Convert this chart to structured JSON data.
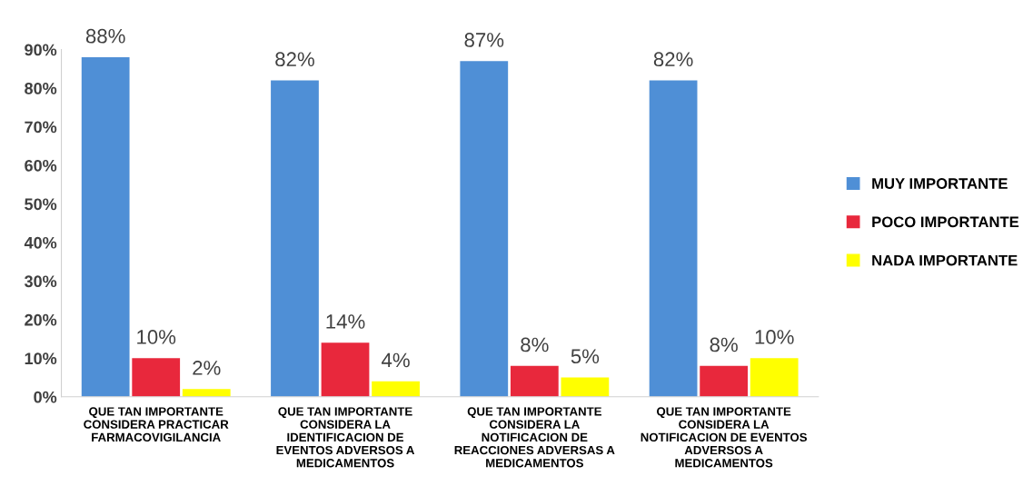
{
  "chart_data": {
    "type": "bar",
    "categories": [
      "QUE TAN IMPORTANTE\nCONSIDERA PRACTICAR\nFARMACOVIGILANCIA",
      "QUE TAN IMPORTANTE\nCONSIDERA LA\nIDENTIFICACION DE\nEVENTOS ADVERSOS A\nMEDICAMENTOS",
      "QUE TAN IMPORTANTE\nCONSIDERA LA\nNOTIFICACION DE\nREACCIONES ADVERSAS A\nMEDICAMENTOS",
      "QUE TAN IMPORTANTE\nCONSIDERA LA\nNOTIFICACION DE EVENTOS\nADVERSOS A\nMEDICAMENTOS"
    ],
    "series": [
      {
        "name": "MUY IMPORTANTE",
        "color": "#4f8fd6",
        "values": [
          88,
          82,
          87,
          82
        ],
        "value_labels": [
          "88%",
          "82%",
          "87%",
          "82%"
        ]
      },
      {
        "name": "POCO IMPORTANTE",
        "color": "#e8283c",
        "values": [
          10,
          14,
          8,
          8
        ],
        "value_labels": [
          "10%",
          "14%",
          "8%",
          "8%"
        ]
      },
      {
        "name": "NADA IMPORTANTE",
        "color": "#ffff00",
        "values": [
          2,
          4,
          5,
          10
        ],
        "value_labels": [
          "2%",
          "4%",
          "5%",
          "10%"
        ]
      }
    ],
    "ylim": [
      0,
      90
    ],
    "yticks": [
      {
        "value": 0,
        "label": "0%"
      },
      {
        "value": 10,
        "label": "10%"
      },
      {
        "value": 20,
        "label": "20%"
      },
      {
        "value": 30,
        "label": "30%"
      },
      {
        "value": 40,
        "label": "40%"
      },
      {
        "value": 50,
        "label": "50%"
      },
      {
        "value": 60,
        "label": "60%"
      },
      {
        "value": 70,
        "label": "70%"
      },
      {
        "value": 80,
        "label": "80%"
      },
      {
        "value": 90,
        "label": "90%"
      }
    ],
    "grid": false,
    "legend": "right"
  }
}
